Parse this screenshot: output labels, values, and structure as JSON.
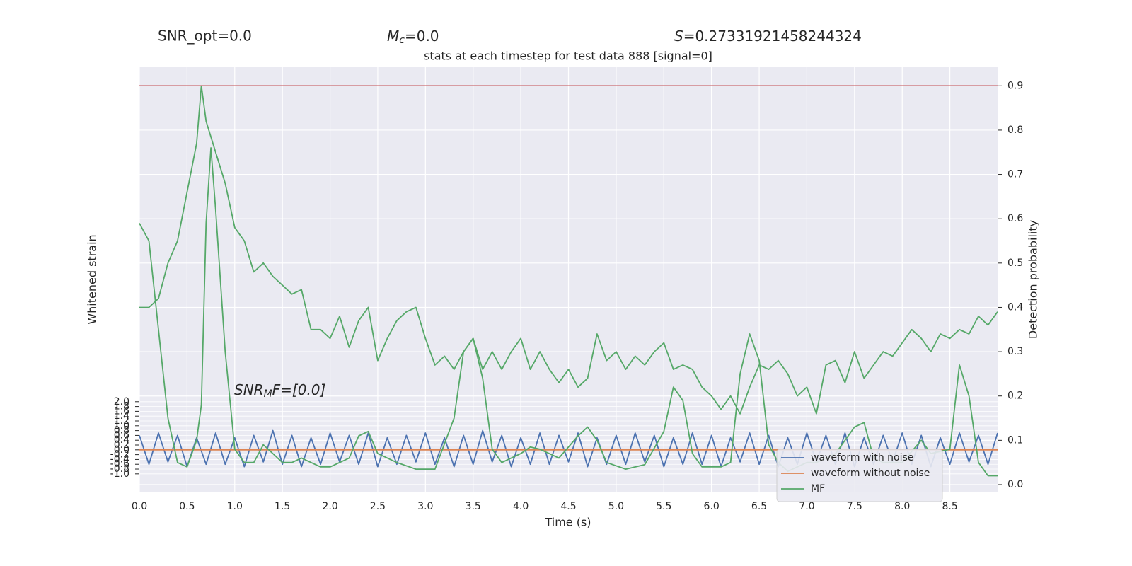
{
  "chart_data": {
    "type": "line",
    "header": {
      "snr_opt": "SNR_opt=0.0",
      "mc": {
        "base": "M",
        "sub": "c",
        "rest": "=0.0"
      },
      "s": {
        "base": "S",
        "rest": "=0.27331921458244324"
      }
    },
    "title": "stats at each timestep for test data 888 [signal=0]",
    "annotation": {
      "base": "SNR",
      "sub": "M",
      "rest": "F=[0.0]"
    },
    "x_label": "Time (s)",
    "y_label": "Detection probability",
    "y2_label": "Whitened strain",
    "xlim": [
      0,
      9.0
    ],
    "xticks": [
      {
        "value": 0,
        "label": "0.0"
      },
      0.5,
      {
        "value": 1,
        "label": "1.0"
      },
      1.5,
      {
        "value": 2,
        "label": "2.0"
      },
      2.5,
      {
        "value": 3,
        "label": "3.0"
      },
      3.5,
      {
        "value": 4,
        "label": "4.0"
      },
      4.5,
      {
        "value": 5,
        "label": "5.0"
      },
      5.5,
      {
        "value": 6,
        "label": "6.0"
      },
      6.5,
      {
        "value": 7,
        "label": "7.0"
      },
      7.5,
      {
        "value": 8,
        "label": "8.0"
      },
      8.5
    ],
    "ylim": [
      -0.016,
      0.942
    ],
    "yticks": [
      {
        "value": 0,
        "label": "0.0"
      },
      0.1,
      0.2,
      0.3,
      0.4,
      0.5,
      0.6,
      0.7,
      0.8,
      0.9
    ],
    "y2lim": [
      -1.74,
      15.9
    ],
    "y2ticks": [
      {
        "value": -1,
        "label": "-1.0"
      },
      -0.8,
      -0.6,
      -0.4,
      -0.2,
      {
        "value": 0,
        "label": "0.0"
      },
      0.2,
      0.4,
      0.6,
      0.8,
      {
        "value": 1,
        "label": "1.0"
      },
      1.2,
      1.4,
      1.6,
      1.8,
      {
        "value": 2,
        "label": "2.0"
      }
    ],
    "grid": true,
    "legend": "lower right",
    "threshold": {
      "value": 0.9,
      "color": "#c44e52"
    },
    "series": [
      {
        "name": "waveform with noise",
        "color": "#4c72b0",
        "axis": "y2",
        "x": [
          0,
          0.1,
          0.2,
          0.3,
          0.4,
          0.5,
          0.6,
          0.7,
          0.8,
          0.9,
          1,
          1.1,
          1.2,
          1.3,
          1.4,
          1.5,
          1.6,
          1.7,
          1.8,
          1.9,
          2,
          2.1,
          2.2,
          2.3,
          2.4,
          2.5,
          2.6,
          2.7,
          2.8,
          2.9,
          3,
          3.1,
          3.2,
          3.3,
          3.4,
          3.5,
          3.6,
          3.7,
          3.8,
          3.9,
          4,
          4.1,
          4.2,
          4.3,
          4.4,
          4.5,
          4.6,
          4.7,
          4.8,
          4.9,
          5,
          5.1,
          5.2,
          5.3,
          5.4,
          5.5,
          5.6,
          5.7,
          5.8,
          5.9,
          6,
          6.1,
          6.2,
          6.3,
          6.4,
          6.5,
          6.6,
          6.7,
          6.8,
          6.9,
          7,
          7.1,
          7.2,
          7.3,
          7.4,
          7.5,
          7.6,
          7.7,
          7.8,
          7.9,
          8,
          8.1,
          8.2,
          8.3,
          8.4,
          8.5,
          8.6,
          8.7,
          8.8,
          8.9,
          9
        ],
        "values": [
          0.6,
          -0.6,
          0.7,
          -0.5,
          0.6,
          -0.7,
          0.5,
          -0.6,
          0.7,
          -0.6,
          0.5,
          -0.7,
          0.6,
          -0.5,
          0.8,
          -0.6,
          0.6,
          -0.7,
          0.5,
          -0.6,
          0.7,
          -0.5,
          0.6,
          -0.6,
          0.7,
          -0.7,
          0.5,
          -0.6,
          0.6,
          -0.5,
          0.7,
          -0.6,
          0.5,
          -0.7,
          0.6,
          -0.6,
          0.8,
          -0.5,
          0.6,
          -0.7,
          0.5,
          -0.6,
          0.7,
          -0.6,
          0.6,
          -0.5,
          0.7,
          -0.7,
          0.5,
          -0.6,
          0.6,
          -0.6,
          0.7,
          -0.5,
          0.6,
          -0.7,
          0.5,
          -0.6,
          0.7,
          -0.6,
          0.6,
          -0.7,
          0.5,
          -0.5,
          0.7,
          -0.6,
          0.6,
          -0.7,
          0.5,
          -0.6,
          0.7,
          -0.5,
          0.6,
          -0.6,
          0.7,
          -0.7,
          0.5,
          -0.6,
          0.6,
          -0.5,
          0.7,
          -0.6,
          0.6,
          -0.7,
          0.5,
          -0.6,
          0.7,
          -0.5,
          0.6,
          -0.6,
          0.7
        ]
      },
      {
        "name": "waveform without noise",
        "color": "#dd8452",
        "axis": "y2",
        "x": [
          0,
          9
        ],
        "values": [
          0,
          0
        ]
      },
      {
        "name": "MF",
        "color": "#55a868",
        "x": [
          0,
          0.1,
          0.2,
          0.3,
          0.4,
          0.5,
          0.6,
          0.65,
          0.7,
          0.75,
          0.8,
          0.9,
          1,
          1.1,
          1.2,
          1.3,
          1.4,
          1.5,
          1.6,
          1.7,
          1.8,
          1.9,
          2,
          2.2,
          2.3,
          2.4,
          2.5,
          2.7,
          2.9,
          3.1,
          3.3,
          3.4,
          3.5,
          3.6,
          3.7,
          3.8,
          4,
          4.1,
          4.2,
          4.4,
          4.6,
          4.7,
          4.8,
          4.9,
          5.1,
          5.3,
          5.5,
          5.6,
          5.7,
          5.8,
          5.9,
          6.1,
          6.2,
          6.3,
          6.4,
          6.5,
          6.6,
          6.7,
          6.8,
          7,
          7.1,
          7.3,
          7.5,
          7.6,
          7.7,
          7.8,
          8,
          8.2,
          8.3,
          8.5,
          8.6,
          8.7,
          8.8,
          8.9,
          9
        ],
        "values": [
          0.59,
          0.55,
          0.35,
          0.15,
          0.05,
          0.04,
          0.1,
          0.18,
          0.59,
          0.76,
          0.62,
          0.3,
          0.08,
          0.05,
          0.05,
          0.09,
          0.07,
          0.05,
          0.05,
          0.06,
          0.05,
          0.04,
          0.04,
          0.06,
          0.11,
          0.12,
          0.07,
          0.05,
          0.035,
          0.035,
          0.15,
          0.3,
          0.33,
          0.24,
          0.08,
          0.05,
          0.07,
          0.085,
          0.08,
          0.06,
          0.11,
          0.13,
          0.1,
          0.05,
          0.035,
          0.045,
          0.12,
          0.22,
          0.19,
          0.07,
          0.04,
          0.04,
          0.05,
          0.25,
          0.34,
          0.28,
          0.09,
          0.05,
          0.03,
          0.05,
          0.05,
          0.07,
          0.13,
          0.14,
          0.06,
          0.05,
          0.05,
          0.1,
          0.07,
          0.08,
          0.27,
          0.2,
          0.05,
          0.02,
          0.02
        ]
      },
      {
        "color": "#55a868",
        "x": [
          0,
          0.1,
          0.2,
          0.3,
          0.4,
          0.5,
          0.6,
          0.65,
          0.7,
          0.8,
          0.9,
          1,
          1.1,
          1.2,
          1.3,
          1.4,
          1.5,
          1.6,
          1.7,
          1.8,
          1.9,
          2,
          2.1,
          2.2,
          2.3,
          2.4,
          2.5,
          2.6,
          2.7,
          2.8,
          2.9,
          3,
          3.1,
          3.2,
          3.3,
          3.4,
          3.5,
          3.6,
          3.7,
          3.8,
          3.9,
          4,
          4.1,
          4.2,
          4.3,
          4.4,
          4.5,
          4.6,
          4.7,
          4.8,
          4.9,
          5,
          5.1,
          5.2,
          5.3,
          5.4,
          5.5,
          5.6,
          5.7,
          5.8,
          5.9,
          6,
          6.1,
          6.2,
          6.3,
          6.4,
          6.5,
          6.6,
          6.7,
          6.8,
          6.9,
          7,
          7.1,
          7.2,
          7.3,
          7.4,
          7.5,
          7.6,
          7.7,
          7.8,
          7.9,
          8,
          8.1,
          8.2,
          8.3,
          8.4,
          8.5,
          8.6,
          8.7,
          8.8,
          8.9,
          9
        ],
        "values": [
          0.4,
          0.4,
          0.42,
          0.5,
          0.55,
          0.66,
          0.77,
          0.9,
          0.82,
          0.75,
          0.68,
          0.58,
          0.55,
          0.48,
          0.5,
          0.47,
          0.45,
          0.43,
          0.44,
          0.35,
          0.35,
          0.33,
          0.38,
          0.31,
          0.37,
          0.4,
          0.28,
          0.33,
          0.37,
          0.39,
          0.4,
          0.33,
          0.27,
          0.29,
          0.26,
          0.3,
          0.33,
          0.26,
          0.3,
          0.26,
          0.3,
          0.33,
          0.26,
          0.3,
          0.26,
          0.23,
          0.26,
          0.22,
          0.24,
          0.34,
          0.28,
          0.3,
          0.26,
          0.29,
          0.27,
          0.3,
          0.32,
          0.26,
          0.27,
          0.26,
          0.22,
          0.2,
          0.17,
          0.2,
          0.16,
          0.22,
          0.27,
          0.26,
          0.28,
          0.25,
          0.2,
          0.22,
          0.16,
          0.27,
          0.28,
          0.23,
          0.3,
          0.24,
          0.27,
          0.3,
          0.29,
          0.32,
          0.35,
          0.33,
          0.3,
          0.34,
          0.33,
          0.35,
          0.34,
          0.38,
          0.36,
          0.39
        ]
      }
    ]
  }
}
